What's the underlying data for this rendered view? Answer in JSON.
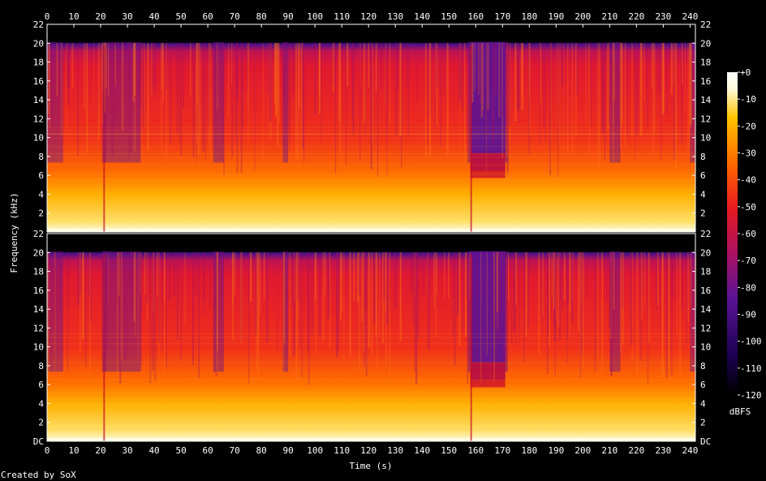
{
  "chart_data": {
    "type": "heatmap",
    "title": "",
    "xlabel": "Time (s)",
    "ylabel": "Frequency (kHz)",
    "x_ticks": [
      0,
      10,
      20,
      30,
      40,
      50,
      60,
      70,
      80,
      90,
      100,
      110,
      120,
      130,
      140,
      150,
      160,
      170,
      180,
      190,
      200,
      210,
      220,
      230,
      240
    ],
    "xlim": [
      0,
      242
    ],
    "channels": [
      {
        "y_ticks": [
          "2",
          "4",
          "6",
          "8",
          "10",
          "12",
          "14",
          "16",
          "18",
          "20",
          "22"
        ],
        "ylim_khz": [
          0,
          22
        ]
      },
      {
        "y_ticks": [
          "DC",
          "2",
          "4",
          "6",
          "8",
          "10",
          "12",
          "14",
          "16",
          "18",
          "20",
          "22"
        ],
        "ylim_khz": [
          0,
          22
        ]
      }
    ],
    "lowpass_cutoff_khz": 20,
    "colorbar": {
      "label": "dBFS",
      "ticks": [
        "+0",
        "-10",
        "-20",
        "-30",
        "-40",
        "-50",
        "-60",
        "-70",
        "-80",
        "-90",
        "-100",
        "-110",
        "-120"
      ],
      "range_db": [
        -120,
        0
      ]
    },
    "quiet_segments_s": [
      [
        0,
        6
      ],
      [
        20.5,
        22
      ],
      [
        21,
        35
      ],
      [
        62,
        66
      ],
      [
        88,
        90
      ],
      [
        157,
        172
      ],
      [
        210,
        214
      ],
      [
        240,
        242
      ]
    ],
    "gap_segments_s": [
      [
        158,
        171
      ]
    ]
  },
  "footer": {
    "credit": "Created by SoX"
  },
  "colors": {
    "background": "#000000",
    "axis": "#ffffff",
    "palette": [
      "#000000",
      "#1a0050",
      "#5a1396",
      "#b0115e",
      "#e81a1e",
      "#ff6a00",
      "#ffc400",
      "#fffbe0",
      "#ffffff"
    ]
  }
}
